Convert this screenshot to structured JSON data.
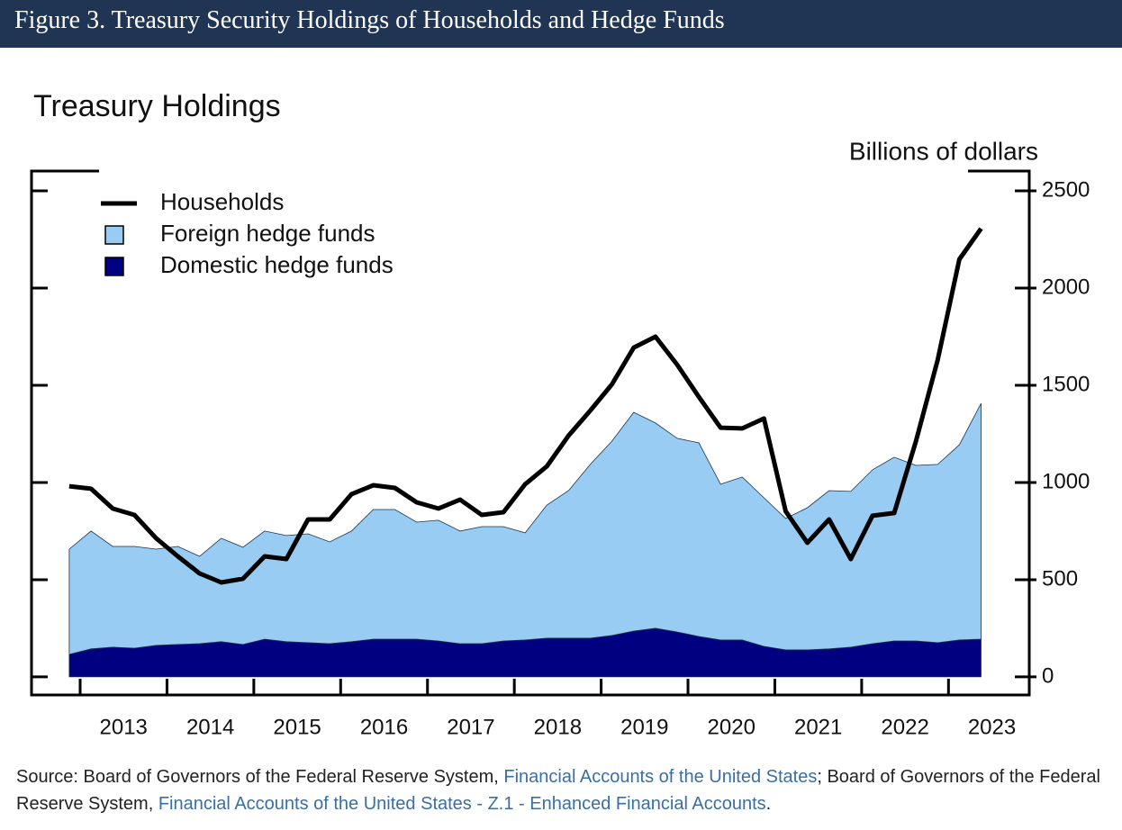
{
  "header": {
    "title": "Figure 3. Treasury Security Holdings of Households and Hedge Funds"
  },
  "chart_data": {
    "type": "area",
    "title": "Treasury Holdings",
    "y_axis_label": "Billions of dollars",
    "x": [
      2012.875,
      2013.125,
      2013.375,
      2013.625,
      2013.875,
      2014.125,
      2014.375,
      2014.625,
      2014.875,
      2015.125,
      2015.375,
      2015.625,
      2015.875,
      2016.125,
      2016.375,
      2016.625,
      2016.875,
      2017.125,
      2017.375,
      2017.625,
      2017.875,
      2018.125,
      2018.375,
      2018.625,
      2018.875,
      2019.125,
      2019.375,
      2019.625,
      2019.875,
      2020.125,
      2020.375,
      2020.625,
      2020.875,
      2021.125,
      2021.375,
      2021.625,
      2021.875,
      2022.125,
      2022.375,
      2022.625,
      2022.875,
      2023.125,
      2023.375
    ],
    "series": [
      {
        "name": "Households",
        "type": "line",
        "color": "#000000",
        "values": [
          981,
          968,
          866,
          833,
          713,
          620,
          532,
          486,
          505,
          620,
          606,
          810,
          810,
          940,
          986,
          972,
          898,
          866,
          912,
          833,
          847,
          991,
          1083,
          1241,
          1370,
          1505,
          1694,
          1750,
          1606,
          1440,
          1282,
          1278,
          1329,
          852,
          690,
          810,
          606,
          829,
          843,
          1213,
          1630,
          2148,
          2306
        ]
      },
      {
        "name": "Foreign hedge funds",
        "type": "stacked-area",
        "color": "#99ccf2",
        "values": [
          541,
          606,
          518,
          523,
          495,
          504,
          449,
          532,
          500,
          556,
          546,
          560,
          523,
          569,
          667,
          667,
          602,
          621,
          579,
          602,
          588,
          551,
          685,
          759,
          894,
          1000,
          1125,
          1056,
          996,
          996,
          801,
          838,
          764,
          676,
          731,
          814,
          801,
          894,
          945,
          903,
          917,
          1004,
          1213
        ]
      },
      {
        "name": "Domestic hedge funds",
        "type": "stacked-area",
        "color": "#000080",
        "values": [
          116,
          144,
          153,
          148,
          162,
          167,
          171,
          181,
          167,
          194,
          181,
          176,
          171,
          181,
          194,
          194,
          194,
          185,
          171,
          171,
          185,
          190,
          199,
          199,
          199,
          213,
          236,
          250,
          231,
          208,
          190,
          190,
          157,
          139,
          139,
          144,
          153,
          171,
          185,
          185,
          176,
          190,
          194
        ]
      }
    ],
    "xlim": [
      2012.44,
      2023.93
    ],
    "xticks": [
      2013,
      2014,
      2015,
      2016,
      2017,
      2018,
      2019,
      2020,
      2021,
      2022,
      2023
    ],
    "ylim": [
      -93,
      2602
    ],
    "yticks": [
      0,
      500,
      1000,
      1500,
      2000,
      2500
    ],
    "y_axis_side": "right",
    "legend": "top-left"
  },
  "source": {
    "prefix": "Source: Board of Governors of the Federal Reserve System, ",
    "link1": "Financial Accounts of the United States",
    "middle": "; Board of Governors of the Federal Reserve System, ",
    "link2": "Financial Accounts of the United States - Z.1 - Enhanced Financial Accounts",
    "end": "."
  }
}
